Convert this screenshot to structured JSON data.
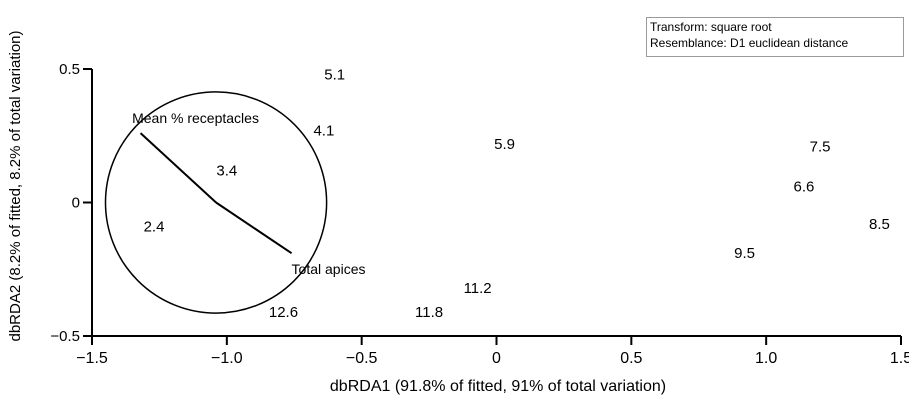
{
  "chart_data": {
    "type": "scatter",
    "title": "",
    "xlabel": "dbRDA1 (91.8% of fitted, 91% of total variation)",
    "ylabel": "dbRDA2 (8.2% of fitted, 8.2% of total variation)",
    "xlim": [
      -1.5,
      1.5
    ],
    "ylim": [
      -0.5,
      0.5
    ],
    "xticks": [
      -1.5,
      -1.0,
      -0.5,
      0,
      0.5,
      1.0,
      1.5
    ],
    "xtick_labels": [
      "−1.5",
      "−1.0",
      "−0.5",
      "0",
      "0.5",
      "1.0",
      "1.5"
    ],
    "yticks": [
      -0.5,
      0,
      0.5
    ],
    "ytick_labels": [
      "−0.5",
      "0",
      "0.5"
    ],
    "grid": false,
    "points": [
      {
        "label": "5.1",
        "x": -0.6,
        "y": 0.48
      },
      {
        "label": "4.1",
        "x": -0.64,
        "y": 0.27
      },
      {
        "label": "5.9",
        "x": 0.03,
        "y": 0.22
      },
      {
        "label": "7.5",
        "x": 1.2,
        "y": 0.21
      },
      {
        "label": "6.6",
        "x": 1.14,
        "y": 0.06
      },
      {
        "label": "3.4",
        "x": -1.0,
        "y": 0.12
      },
      {
        "label": "2.4",
        "x": -1.27,
        "y": -0.09
      },
      {
        "label": "8.5",
        "x": 1.42,
        "y": -0.08
      },
      {
        "label": "9.5",
        "x": 0.92,
        "y": -0.19
      },
      {
        "label": "11.2",
        "x": -0.07,
        "y": -0.32
      },
      {
        "label": "12.6",
        "x": -0.79,
        "y": -0.41
      },
      {
        "label": "11.8",
        "x": -0.25,
        "y": -0.41
      }
    ],
    "vector_circle": {
      "center": [
        -1.04,
        0
      ],
      "radius": 0.41
    },
    "vectors": [
      {
        "label": "Mean % receptacles",
        "x": -1.32,
        "y": 0.26
      },
      {
        "label": "Total apices",
        "x": -0.76,
        "y": -0.19
      }
    ],
    "legend": {
      "placement": "top-right",
      "lines": [
        "Transform: square root",
        "Resemblance: D1 euclidean distance"
      ]
    }
  }
}
